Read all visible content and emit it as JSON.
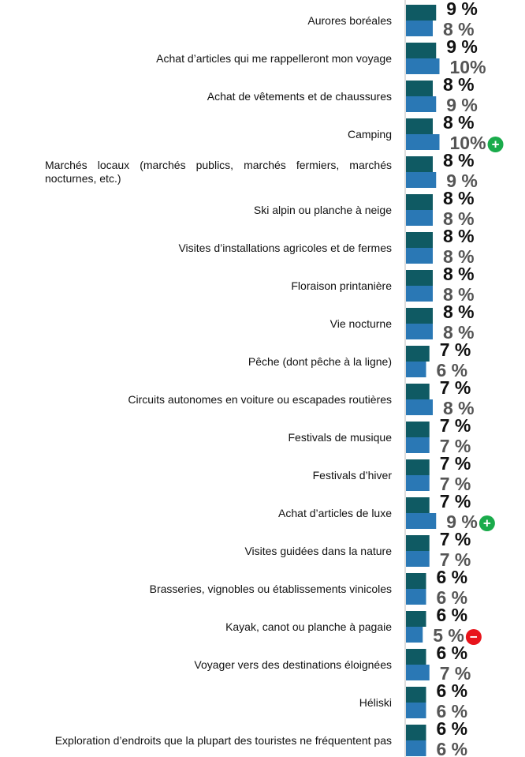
{
  "chart_data": {
    "type": "bar",
    "orientation": "horizontal",
    "categories": [
      "Aurores boréales",
      "Achat d’articles qui me rappelleront mon voyage",
      "Achat de vêtements et de chaussures",
      "Camping",
      "Marchés locaux (marchés publics, marchés fermiers, marchés nocturnes, etc.)",
      "Ski alpin ou planche à neige",
      "Visites d’installations agricoles et de fermes",
      "Floraison printanière",
      "Vie nocturne",
      "Pêche (dont pêche à la ligne)",
      "Circuits autonomes en voiture ou escapades routières",
      "Festivals de musique",
      "Festivals d’hiver",
      "Achat d’articles de luxe",
      "Visites guidées dans la nature",
      "Brasseries, vignobles ou établissements vinicoles",
      "Kayak, canot ou planche à pagaie",
      "Voyager vers des destinations éloignées",
      "Héliski",
      "Exploration d’endroits que la plupart des touristes ne fréquentent pas"
    ],
    "series": [
      {
        "color": "#0f5a63",
        "label_color": "#111111",
        "values": [
          9,
          9,
          8,
          8,
          8,
          8,
          8,
          8,
          8,
          7,
          7,
          7,
          7,
          7,
          7,
          6,
          6,
          6,
          6,
          6
        ],
        "value_labels": [
          "9 %",
          "9 %",
          "8 %",
          "8 %",
          "8 %",
          "8 %",
          "8 %",
          "8 %",
          "8 %",
          "7 %",
          "7 %",
          "7 %",
          "7 %",
          "7 %",
          "7 %",
          "6 %",
          "6 %",
          "6 %",
          "6 %",
          "6 %"
        ]
      },
      {
        "color": "#2a78b5",
        "label_color": "#555555",
        "values": [
          8,
          10,
          9,
          10,
          9,
          8,
          8,
          8,
          8,
          6,
          8,
          7,
          7,
          9,
          7,
          6,
          5,
          7,
          6,
          6
        ],
        "value_labels": [
          "8 %",
          "10%",
          "9 %",
          "10%",
          "9 %",
          "8 %",
          "8 %",
          "8 %",
          "8 %",
          "6 %",
          "8 %",
          "7 %",
          "7 %",
          "9 %",
          "7 %",
          "6 %",
          "5 %",
          "7 %",
          "6 %",
          "6 %"
        ],
        "significance": [
          null,
          null,
          null,
          "+",
          null,
          null,
          null,
          null,
          null,
          null,
          null,
          null,
          null,
          "+",
          null,
          null,
          "−",
          null,
          null,
          null
        ]
      }
    ]
  }
}
